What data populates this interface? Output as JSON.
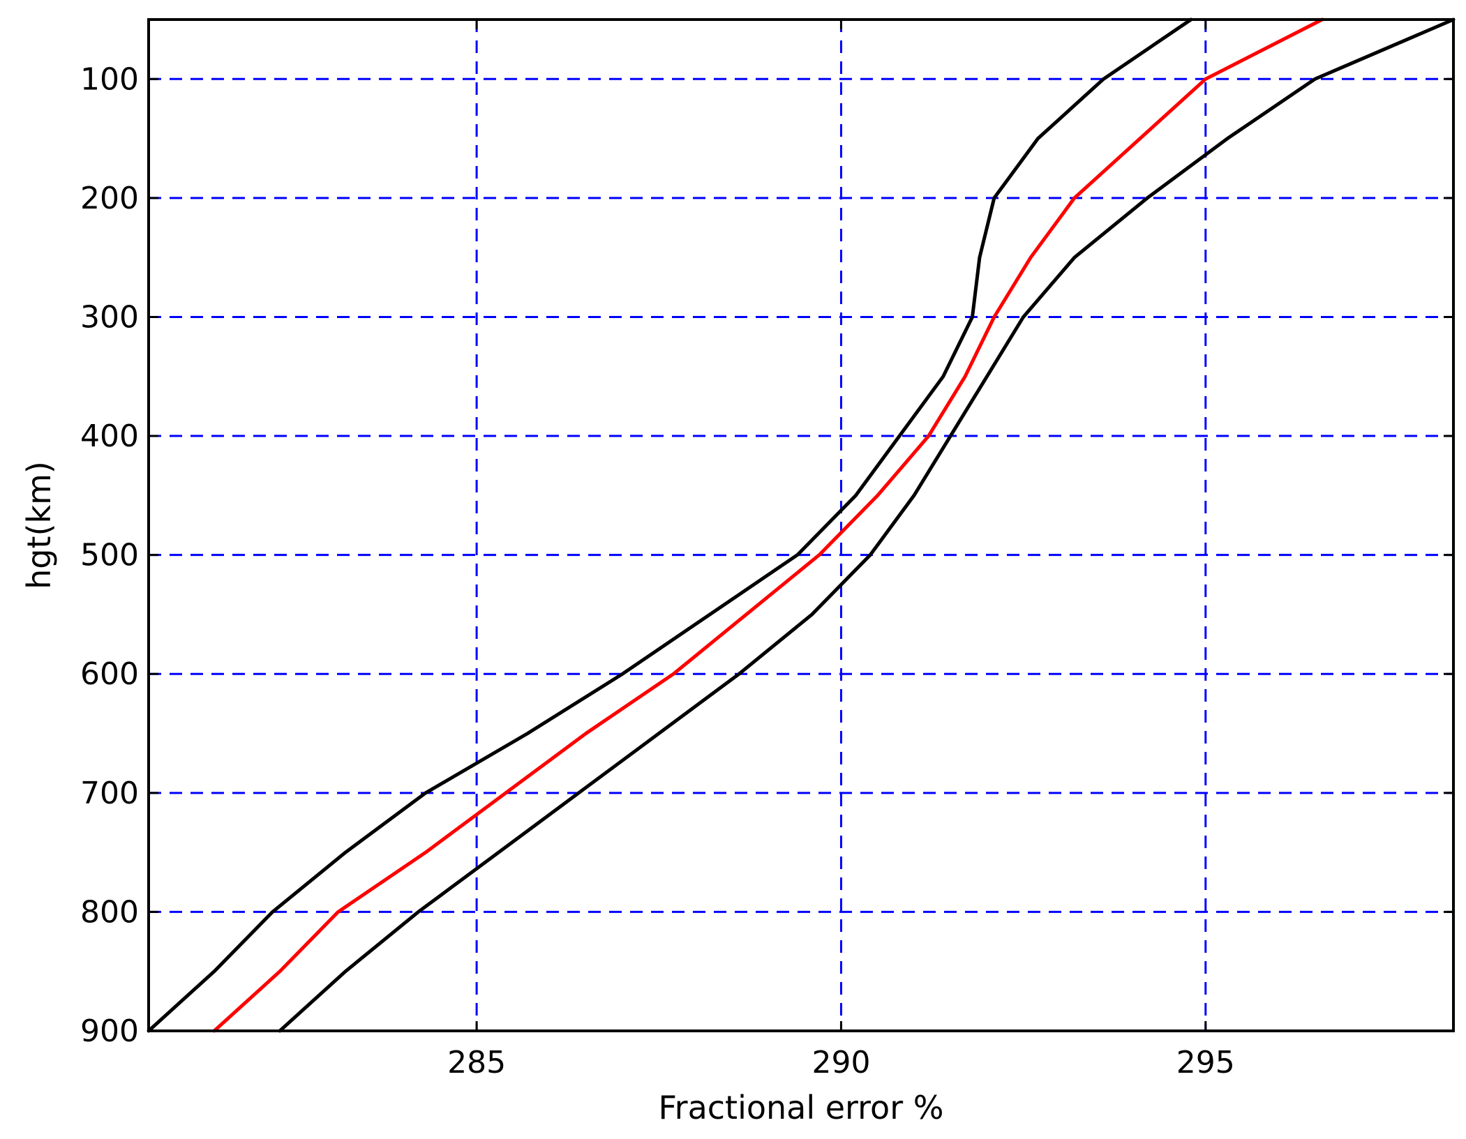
{
  "chart_data": {
    "type": "line",
    "title": "",
    "xlabel": "Fractional error %",
    "ylabel": "hgt(km)",
    "xlim": [
      280.5,
      298.4
    ],
    "ylim": [
      900,
      50
    ],
    "y_inverted": true,
    "grid": true,
    "grid_style": "dashed",
    "grid_color": "#0000ff",
    "x_ticks": [
      285,
      290,
      295
    ],
    "y_ticks": [
      100,
      200,
      300,
      400,
      500,
      600,
      700,
      800,
      900
    ],
    "series": [
      {
        "color": "#000000",
        "points": [
          [
            280.5,
            900
          ],
          [
            281.4,
            850
          ],
          [
            282.2,
            800
          ],
          [
            283.2,
            750
          ],
          [
            284.3,
            700
          ],
          [
            285.7,
            650
          ],
          [
            287.0,
            600
          ],
          [
            288.2,
            550
          ],
          [
            289.4,
            500
          ],
          [
            290.2,
            450
          ],
          [
            290.8,
            400
          ],
          [
            291.4,
            350
          ],
          [
            291.8,
            300
          ],
          [
            291.9,
            250
          ],
          [
            292.1,
            200
          ],
          [
            292.7,
            150
          ],
          [
            293.6,
            100
          ],
          [
            294.8,
            50
          ]
        ]
      },
      {
        "color": "#ff0000",
        "points": [
          [
            281.4,
            900
          ],
          [
            282.3,
            850
          ],
          [
            283.1,
            800
          ],
          [
            284.3,
            750
          ],
          [
            285.4,
            700
          ],
          [
            286.5,
            650
          ],
          [
            287.7,
            600
          ],
          [
            288.7,
            550
          ],
          [
            289.7,
            500
          ],
          [
            290.5,
            450
          ],
          [
            291.2,
            400
          ],
          [
            291.7,
            350
          ],
          [
            292.1,
            300
          ],
          [
            292.6,
            250
          ],
          [
            293.2,
            200
          ],
          [
            294.1,
            150
          ],
          [
            295.0,
            100
          ],
          [
            296.6,
            50
          ]
        ]
      },
      {
        "color": "#000000",
        "points": [
          [
            282.3,
            900
          ],
          [
            283.2,
            850
          ],
          [
            284.2,
            800
          ],
          [
            285.3,
            750
          ],
          [
            286.4,
            700
          ],
          [
            287.5,
            650
          ],
          [
            288.6,
            600
          ],
          [
            289.6,
            550
          ],
          [
            290.4,
            500
          ],
          [
            291.0,
            450
          ],
          [
            291.5,
            400
          ],
          [
            292.0,
            350
          ],
          [
            292.5,
            300
          ],
          [
            293.2,
            250
          ],
          [
            294.2,
            200
          ],
          [
            295.3,
            150
          ],
          [
            296.5,
            100
          ],
          [
            298.4,
            50
          ]
        ]
      }
    ]
  }
}
